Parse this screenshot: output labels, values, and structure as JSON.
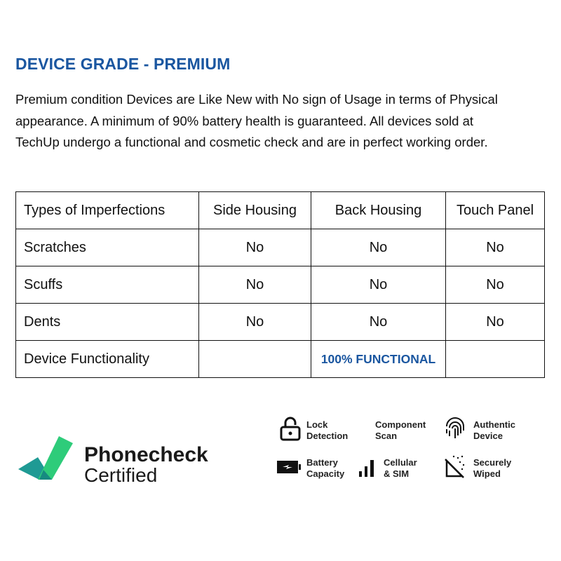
{
  "heading": "DEVICE GRADE - PREMIUM",
  "description": "Premium condition Devices are Like New with No sign of Usage in terms of Physical appearance. A minimum of 90% battery health is guaranteed. All devices sold at TechUp undergo a functional and cosmetic check and are in perfect working order.",
  "table": {
    "headers": [
      "Types of Imperfections",
      "Side Housing",
      "Back Housing",
      "Touch Panel"
    ],
    "rows": [
      [
        "Scratches",
        "No",
        "No",
        "No"
      ],
      [
        "Scuffs",
        "No",
        "No",
        "No"
      ],
      [
        "Dents",
        "No",
        "No",
        "No"
      ],
      [
        "Device Functionality",
        "",
        "100% FUNCTIONAL",
        ""
      ]
    ]
  },
  "badge": {
    "line1": "Phonecheck",
    "line2": "Certified",
    "features": [
      {
        "icon": "lock-icon",
        "l1": "Lock",
        "l2": "Detection"
      },
      {
        "icon": "",
        "l1": "Component",
        "l2": "Scan"
      },
      {
        "icon": "fingerprint-icon",
        "l1": "Authentic",
        "l2": "Device"
      },
      {
        "icon": "battery-icon",
        "l1": "Battery",
        "l2": "Capacity"
      },
      {
        "icon": "signal-icon",
        "l1": "Cellular",
        "l2": "& SIM"
      },
      {
        "icon": "wipe-icon",
        "l1": "Securely",
        "l2": "Wiped"
      }
    ]
  },
  "colors": {
    "accent": "#1a56a0",
    "check_green": "#2ecc7a",
    "check_teal": "#1f9a94"
  }
}
